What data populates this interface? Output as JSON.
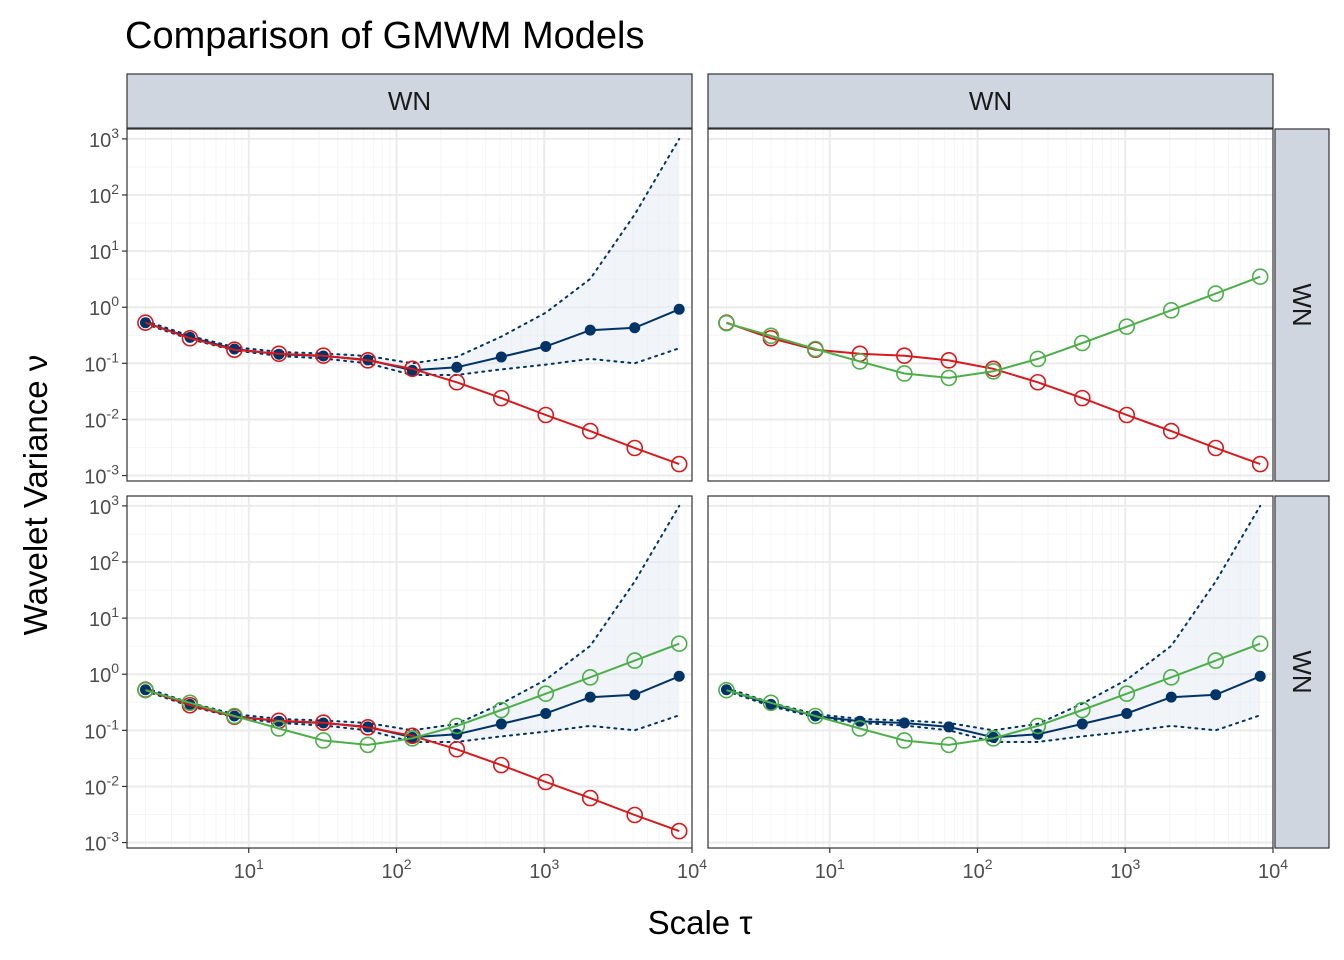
{
  "chart_data": {
    "type": "line",
    "title": "Comparison of GMWM Models",
    "xlabel": "Scale τ",
    "ylabel": "Wavelet Variance ν",
    "x_scale": "log10",
    "y_scale": "log10",
    "xlim": [
      1.5,
      10000
    ],
    "ylim": [
      0.0008,
      1500
    ],
    "x_ticks": [
      10,
      100,
      1000,
      10000
    ],
    "x_tick_labels": [
      {
        "base": "10",
        "exp": "1"
      },
      {
        "base": "10",
        "exp": "2"
      },
      {
        "base": "10",
        "exp": "3"
      },
      {
        "base": "10",
        "exp": "4"
      }
    ],
    "y_ticks": [
      0.001,
      0.01,
      0.1,
      1,
      10,
      100,
      1000
    ],
    "y_tick_labels": [
      {
        "base": "10",
        "exp": "-3"
      },
      {
        "base": "10",
        "exp": "-2"
      },
      {
        "base": "10",
        "exp": "-1"
      },
      {
        "base": "10",
        "exp": "0"
      },
      {
        "base": "10",
        "exp": "1"
      },
      {
        "base": "10",
        "exp": "2"
      },
      {
        "base": "10",
        "exp": "3"
      }
    ],
    "column_strips": [
      "WN",
      "WN"
    ],
    "row_strips": [
      "WN",
      "WN"
    ],
    "grid": true,
    "x": [
      2,
      4,
      8,
      16,
      32,
      64,
      128,
      256,
      512,
      1024,
      2048,
      4096,
      8192
    ],
    "empirical": [
      0.53,
      0.29,
      0.18,
      0.145,
      0.135,
      0.115,
      0.075,
      0.085,
      0.13,
      0.2,
      0.39,
      0.43,
      0.92
    ],
    "ci_lower": [
      0.5,
      0.27,
      0.17,
      0.135,
      0.122,
      0.1,
      0.062,
      0.062,
      0.078,
      0.095,
      0.12,
      0.1,
      0.185
    ],
    "ci_upper": [
      0.57,
      0.31,
      0.195,
      0.16,
      0.15,
      0.135,
      0.1,
      0.13,
      0.3,
      0.8,
      3.2,
      45,
      1000
    ],
    "model_red": [
      0.53,
      0.28,
      0.175,
      0.148,
      0.137,
      0.113,
      0.08,
      0.046,
      0.024,
      0.012,
      0.0062,
      0.0031,
      0.0016
    ],
    "model_green": [
      0.52,
      0.31,
      0.18,
      0.108,
      0.066,
      0.055,
      0.072,
      0.12,
      0.23,
      0.45,
      0.88,
      1.75,
      3.5
    ],
    "panels": [
      {
        "show_empirical": true,
        "show_ci": true,
        "show_red": true,
        "show_green": false
      },
      {
        "show_empirical": false,
        "show_ci": false,
        "show_red": true,
        "show_green": true
      },
      {
        "show_empirical": true,
        "show_ci": true,
        "show_red": true,
        "show_green": true
      },
      {
        "show_empirical": true,
        "show_ci": true,
        "show_red": false,
        "show_green": true
      }
    ],
    "colors": {
      "empirical": "#003366",
      "ci_fill": "#e5ebf3",
      "red": "#d7191c",
      "green": "#4daf4a",
      "strip_fill": "#cfd6e0",
      "strip_border": "#333333",
      "grid_major": "#ebebeb",
      "grid_minor": "#f5f5f5"
    }
  }
}
